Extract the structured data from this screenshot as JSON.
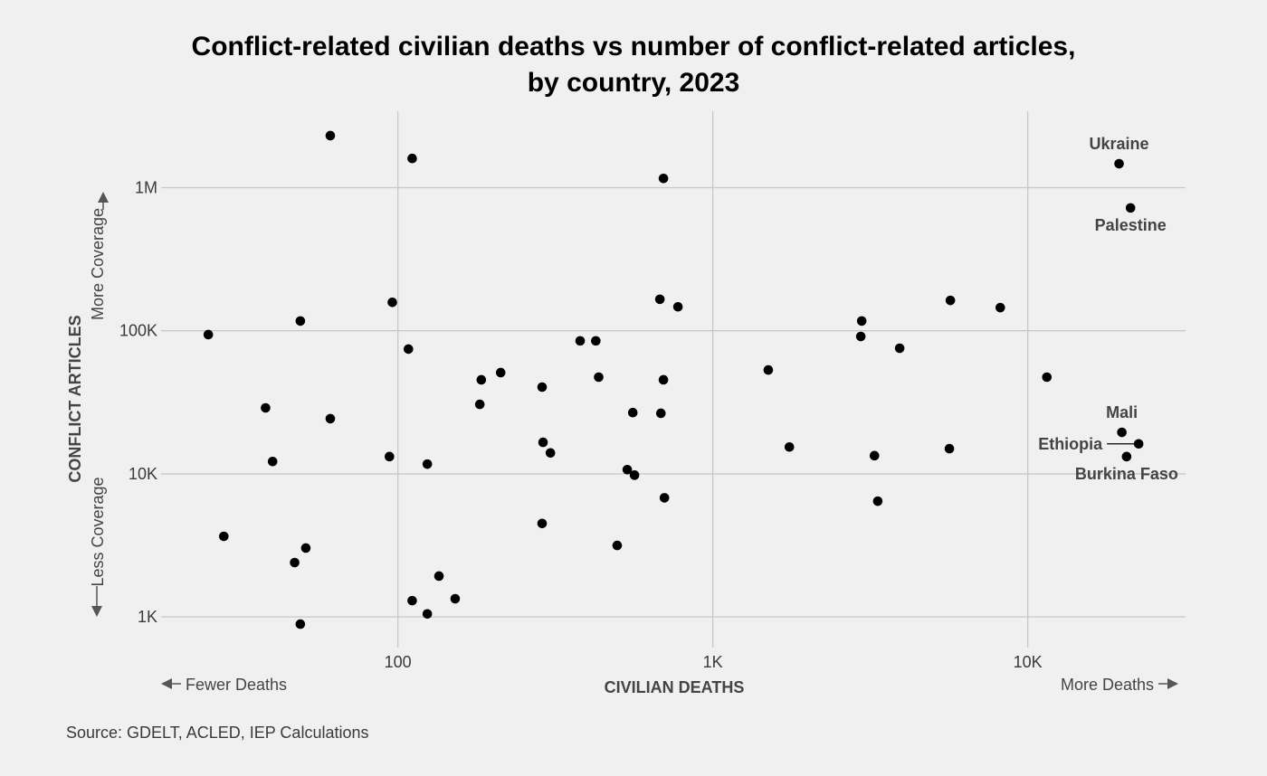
{
  "chart_data": {
    "type": "scatter",
    "title": [
      "Conflict-related civilian deaths vs number of conflict-related articles,",
      "by country, 2023"
    ],
    "xlabel": "CIVILIAN DEATHS",
    "ylabel": "CONFLICT ARTICLES",
    "x_scale": "log",
    "y_scale": "log",
    "xlim": [
      17.7,
      31700
    ],
    "ylim": [
      611,
      3420000
    ],
    "x_ticks": [
      {
        "value": 100,
        "label": "100"
      },
      {
        "value": 1000,
        "label": "1K"
      },
      {
        "value": 10000,
        "label": "10K"
      }
    ],
    "y_ticks": [
      {
        "value": 1000,
        "label": "1K"
      },
      {
        "value": 10000,
        "label": "10K"
      },
      {
        "value": 100000,
        "label": "100K"
      },
      {
        "value": 1000000,
        "label": "1M"
      }
    ],
    "grid": true,
    "x_direction_labels": {
      "low": "Fewer Deaths",
      "high": "More Deaths"
    },
    "y_direction_labels": {
      "low": "Less Coverage",
      "high": "More Coverage"
    },
    "points": [
      {
        "x": 61,
        "y": 2310000
      },
      {
        "x": 111,
        "y": 1600000
      },
      {
        "x": 697,
        "y": 1160000
      },
      {
        "x": 96,
        "y": 158000
      },
      {
        "x": 49,
        "y": 117000
      },
      {
        "x": 25,
        "y": 94000
      },
      {
        "x": 108,
        "y": 74500
      },
      {
        "x": 679,
        "y": 166000
      },
      {
        "x": 775,
        "y": 147000
      },
      {
        "x": 379,
        "y": 85000
      },
      {
        "x": 425,
        "y": 85000
      },
      {
        "x": 184,
        "y": 45400
      },
      {
        "x": 212,
        "y": 51000
      },
      {
        "x": 287,
        "y": 40400
      },
      {
        "x": 434,
        "y": 47400
      },
      {
        "x": 697,
        "y": 45400
      },
      {
        "x": 182,
        "y": 30600
      },
      {
        "x": 557,
        "y": 26800
      },
      {
        "x": 684,
        "y": 26500
      },
      {
        "x": 38,
        "y": 28900
      },
      {
        "x": 61,
        "y": 24300
      },
      {
        "x": 40,
        "y": 12200
      },
      {
        "x": 94,
        "y": 13200
      },
      {
        "x": 124,
        "y": 11700
      },
      {
        "x": 289,
        "y": 16600
      },
      {
        "x": 305,
        "y": 14000
      },
      {
        "x": 535,
        "y": 10700
      },
      {
        "x": 564,
        "y": 9800
      },
      {
        "x": 702,
        "y": 6800
      },
      {
        "x": 287,
        "y": 4500
      },
      {
        "x": 497,
        "y": 3160
      },
      {
        "x": 28,
        "y": 3660
      },
      {
        "x": 51,
        "y": 3030
      },
      {
        "x": 47,
        "y": 2400
      },
      {
        "x": 135,
        "y": 1930
      },
      {
        "x": 111,
        "y": 1300
      },
      {
        "x": 152,
        "y": 1340
      },
      {
        "x": 124,
        "y": 1050
      },
      {
        "x": 49,
        "y": 891
      },
      {
        "x": 1500,
        "y": 53200
      },
      {
        "x": 1750,
        "y": 15400
      },
      {
        "x": 2970,
        "y": 117000
      },
      {
        "x": 2950,
        "y": 91200
      },
      {
        "x": 3920,
        "y": 75500
      },
      {
        "x": 5680,
        "y": 163000
      },
      {
        "x": 8180,
        "y": 145000
      },
      {
        "x": 3260,
        "y": 13400
      },
      {
        "x": 5640,
        "y": 15000
      },
      {
        "x": 3340,
        "y": 6440
      },
      {
        "x": 11500,
        "y": 47400
      },
      {
        "x": 19500,
        "y": 1470000,
        "label": "Ukraine",
        "label_pos": "above"
      },
      {
        "x": 21200,
        "y": 722000,
        "label": "Palestine",
        "label_pos": "below"
      },
      {
        "x": 19900,
        "y": 19500,
        "label": "Mali",
        "label_pos": "above"
      },
      {
        "x": 22500,
        "y": 16200,
        "label": "Ethiopia",
        "label_pos": "left-leader"
      },
      {
        "x": 20600,
        "y": 13200,
        "label": "Burkina Faso",
        "label_pos": "below"
      }
    ]
  },
  "source": "Source: GDELT, ACLED, IEP Calculations",
  "colors": {
    "background": "#f0f0f0",
    "point": "#000000",
    "grid": "#c8c8c8",
    "label": "#444444"
  }
}
